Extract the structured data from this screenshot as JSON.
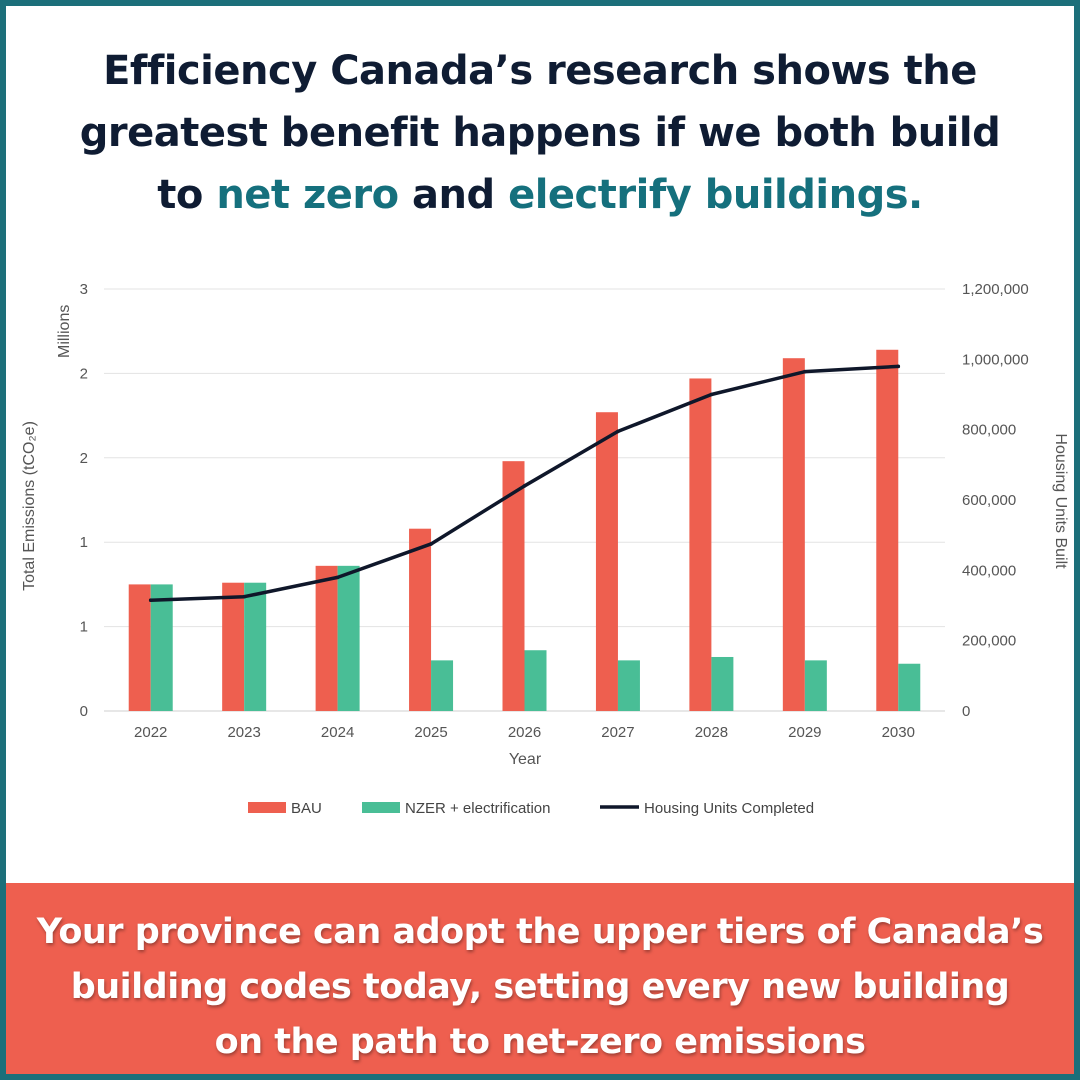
{
  "headline": {
    "line1": "Efficiency Canada’s research shows the",
    "line2": "greatest benefit happens if we both build",
    "line3_prefix": "to",
    "line3_accent1": "net zero",
    "line3_mid": "and",
    "line3_accent2": "electrify buildings."
  },
  "footer": {
    "line1": "Your province can adopt the upper tiers of Canada’s",
    "line2": "building codes today, setting every new building",
    "line3": "on the path to net-zero emissions"
  },
  "colors": {
    "frame": "#1c6f7a",
    "headline_text": "#0f1c33",
    "accent": "#15707d",
    "bau": "#ee5f4f",
    "nzer": "#49be96",
    "housing": "#0f172a",
    "footer_bg": "#ee5f4f"
  },
  "chart_data": {
    "type": "bar",
    "categories": [
      "2022",
      "2023",
      "2024",
      "2025",
      "2026",
      "2027",
      "2028",
      "2029",
      "2030"
    ],
    "series": [
      {
        "name": "BAU",
        "axis": "left",
        "values": [
          0.75,
          0.76,
          0.86,
          1.08,
          1.48,
          1.77,
          1.97,
          2.09,
          2.14
        ]
      },
      {
        "name": "NZER + electrification",
        "axis": "left",
        "values": [
          0.75,
          0.76,
          0.86,
          0.3,
          0.36,
          0.3,
          0.32,
          0.3,
          0.28
        ]
      },
      {
        "name": "Housing Units Completed",
        "axis": "right",
        "kind": "line",
        "values": [
          315000,
          325000,
          380000,
          475000,
          640000,
          795000,
          900000,
          965000,
          980000
        ]
      }
    ],
    "xlabel": "Year",
    "ylabel": "Total Emissions (tCO₂e)",
    "ylabel_units": "Millions",
    "ylabel_right": "Housing Units Built",
    "ylim": [
      0,
      2.5
    ],
    "y_ticks": [
      0,
      0.5,
      1,
      1.5,
      2,
      2.5
    ],
    "y_tick_labels": [
      "0",
      "1",
      "1",
      "2",
      "2",
      "3"
    ],
    "ylim_right": [
      0,
      1200000
    ],
    "y_ticks_right": [
      0,
      200000,
      400000,
      600000,
      800000,
      1000000,
      1200000
    ],
    "y_tick_labels_right": [
      "0",
      "200,000",
      "400,000",
      "600,000",
      "800,000",
      "1,000,000",
      "1,200,000"
    ],
    "grid": true,
    "legend": "bottom"
  }
}
